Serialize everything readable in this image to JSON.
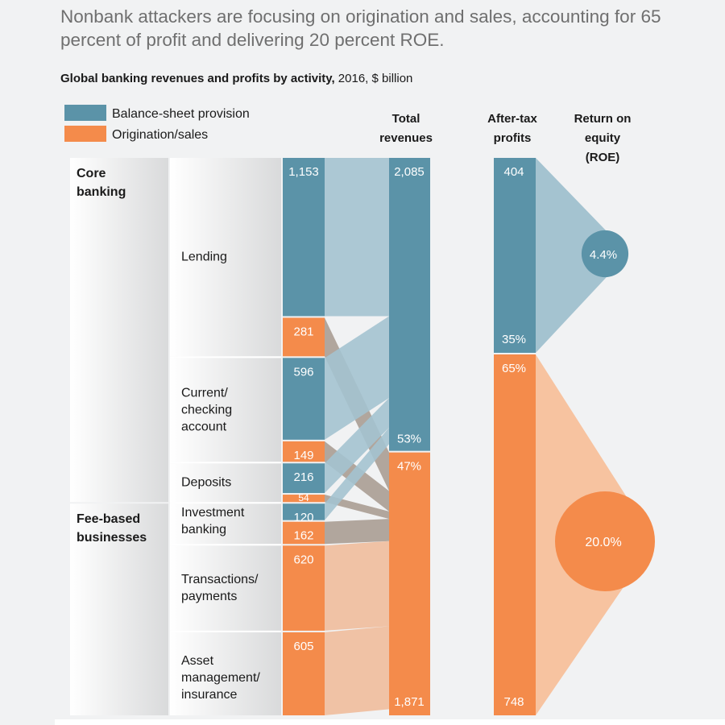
{
  "headline": "Nonbank attackers are focusing on origination and sales, accounting for 65 percent of profit and delivering 20 percent ROE.",
  "subtitle_bold": "Global banking revenues and profits by activity,",
  "subtitle_rest": " 2016, $ billion",
  "colors": {
    "balance": "#5b93a8",
    "origination": "#f48b4b",
    "balance_light": "#a4c3d0",
    "origination_light": "#f7c3a0",
    "flow_dark": "#9b8c80",
    "origination_flow": "#f0bc9c"
  },
  "chart_data": {
    "type": "table",
    "unit": "$ billion",
    "year": "2016",
    "legend": [
      {
        "key": "balance",
        "label": "Balance-sheet provision"
      },
      {
        "key": "origination",
        "label": "Origination/sales"
      }
    ],
    "column_headers": {
      "total_revenues": "Total revenues",
      "after_tax_profits": "After-tax profits",
      "roe": "Return on equity (ROE)"
    },
    "groups": [
      {
        "name": "Core banking",
        "activities": [
          "Lending",
          "Current/checking account",
          "Deposits"
        ]
      },
      {
        "name": "Fee-based businesses",
        "activities": [
          "Investment banking",
          "Transactions/payments",
          "Asset management/insurance"
        ]
      }
    ],
    "activities": [
      {
        "name": "Lending",
        "balance_sheet": 1153,
        "origination": 281
      },
      {
        "name": "Current/checking account",
        "balance_sheet": 596,
        "origination": 149
      },
      {
        "name": "Deposits",
        "balance_sheet": 216,
        "origination": 54
      },
      {
        "name": "Investment banking",
        "balance_sheet": 120,
        "origination": 162
      },
      {
        "name": "Transactions/payments",
        "balance_sheet": null,
        "origination": 620
      },
      {
        "name": "Asset management/insurance",
        "balance_sheet": null,
        "origination": 605
      }
    ],
    "activity_labels": [
      [
        "Lending"
      ],
      [
        "Current/",
        "checking",
        "account"
      ],
      [
        "Deposits"
      ],
      [
        "Investment",
        "banking"
      ],
      [
        "Transactions/",
        "payments"
      ],
      [
        "Asset",
        "management/",
        "insurance"
      ]
    ],
    "group_labels": [
      [
        "Core",
        "banking"
      ],
      [
        "Fee-based",
        "businesses"
      ]
    ],
    "value_labels": [
      "1,153",
      "281",
      "596",
      "149",
      "216",
      "54",
      "120",
      "162",
      "620",
      "605"
    ],
    "total_revenues": {
      "balance_sheet": 2085,
      "balance_label": "2,085",
      "balance_share": "53%",
      "origination": 1871,
      "origination_label": "1,871",
      "origination_share": "47%"
    },
    "after_tax_profits": {
      "balance_sheet": 404,
      "balance_label": "404",
      "balance_share": "35%",
      "origination": 748,
      "origination_label": "748",
      "origination_share": "65%"
    },
    "roe": {
      "balance_sheet": 4.4,
      "balance_label": "4.4%",
      "origination": 20.0,
      "origination_label": "20.0%"
    }
  }
}
